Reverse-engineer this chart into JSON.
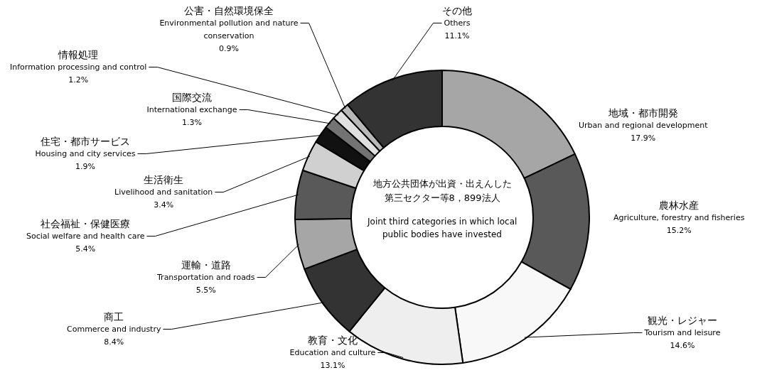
{
  "chart_data": {
    "type": "donut",
    "categories": [
      "地域・都市開発\nUrban and regional development",
      "農林水産\nAgriculture, forestry and fisheries",
      "観光・レジャー\nTourism and leisure",
      "教育・文化\nEducation and culture",
      "商工\nCommerce and industry",
      "運輸・道路\nTransportation and roads",
      "社会福祉・保健医療\nSocial welfare and health care",
      "生活衛生\nLivelihood and sanitation",
      "住宅・都市サービス\nHousing and city services",
      "国際交流\nInternational exchange",
      "情報処理\nInformation processing and control",
      "公害・自然環境保全\nEnvironmental pollution and nature conservation",
      "その他\nOthers"
    ],
    "values": [
      17.9,
      15.2,
      14.6,
      13.1,
      8.4,
      5.5,
      5.4,
      3.4,
      1.9,
      1.3,
      1.2,
      0.9,
      11.1
    ],
    "value_labels": [
      "17.9%",
      "15.2%",
      "14.6%",
      "13.1%",
      "8.4%",
      "5.5%",
      "5.4%",
      "3.4%",
      "1.9%",
      "1.3%",
      "1.2%",
      "0.9%",
      "11.1%"
    ],
    "colors": [
      "#a6a6a6",
      "#595959",
      "#f8f8f8",
      "#eeeeee",
      "#333333",
      "#a6a6a6",
      "#595959",
      "#d0d0d0",
      "#111111",
      "#737373",
      "#e0e0e0",
      "#b8b8b8",
      "#333333"
    ],
    "annotations": [
      "地方公共団体が出資・出えんした",
      "第三セクター等8，899法人",
      "Joint third categories in which local",
      "public bodies have invested"
    ]
  }
}
